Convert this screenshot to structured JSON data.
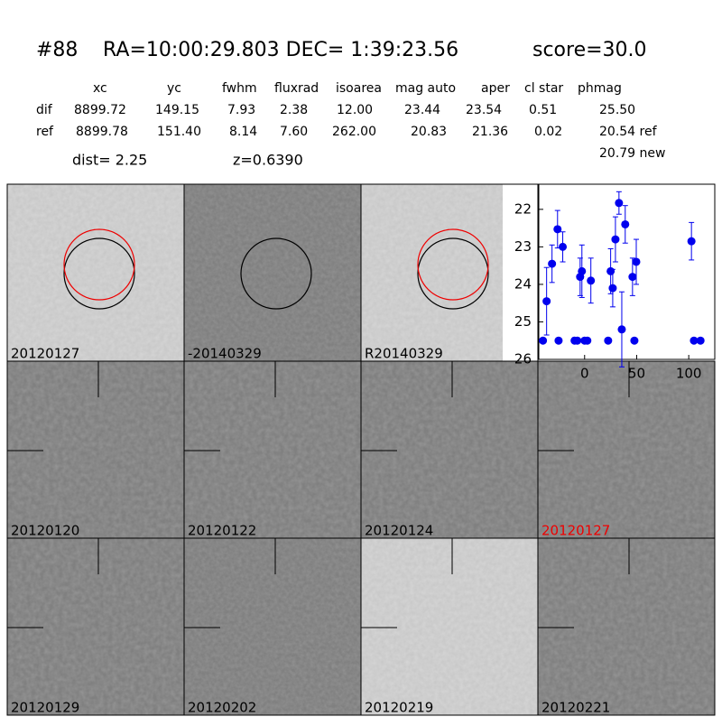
{
  "header": {
    "id": "#88",
    "coords": "RA=10:00:29.803 DEC= 1:39:23.56",
    "score": "score=30.0"
  },
  "table": {
    "columns": [
      "xc",
      "yc",
      "fwhm",
      "fluxrad",
      "isoarea",
      "mag auto",
      "aper",
      "cl star",
      "phmag"
    ],
    "rows": [
      {
        "label": "dif",
        "values": [
          "8899.72",
          "149.15",
          "7.93",
          "2.38",
          "12.00",
          "23.44",
          "23.54",
          "0.51",
          "25.50"
        ]
      },
      {
        "label": "ref",
        "values": [
          "8899.78",
          "151.40",
          "8.14",
          "7.60",
          "262.00",
          "20.83",
          "21.36",
          "0.02",
          "20.54 ref"
        ]
      }
    ],
    "extra": "20.79 new"
  },
  "dist": "dist=  2.25",
  "z": "z=0.6390",
  "panels": [
    "20120127",
    "-20140329",
    "R20140329",
    "20120120",
    "20120122",
    "20120124",
    "20120127",
    "20120129",
    "20120202",
    "20120219",
    "20120221"
  ],
  "chart_data": {
    "type": "scatter",
    "color": "#0000ee",
    "x": [
      -40,
      -36.5,
      -31.3,
      -26,
      -25,
      -21,
      -9.6,
      -7,
      -4.3,
      -2.6,
      0,
      2.6,
      6,
      22.6,
      25,
      27,
      29.6,
      33,
      35.7,
      39,
      46,
      47.8,
      49.6,
      102.6,
      105,
      111.3
    ],
    "values": [
      25.5,
      24.45,
      23.45,
      22.53,
      25.5,
      23.0,
      25.5,
      25.5,
      23.8,
      23.65,
      25.5,
      25.5,
      23.9,
      25.5,
      23.65,
      24.1,
      22.8,
      21.83,
      25.2,
      22.4,
      23.8,
      25.5,
      23.4,
      22.85,
      25.5,
      25.5
    ],
    "errors": [
      null,
      0.9,
      0.5,
      0.5,
      null,
      0.4,
      null,
      null,
      0.5,
      0.7,
      null,
      null,
      0.6,
      null,
      0.6,
      0.5,
      0.6,
      0.3,
      1.0,
      0.5,
      0.5,
      null,
      0.6,
      0.5,
      null,
      null
    ],
    "xlim": [
      -44,
      125
    ],
    "ylim": [
      26,
      21.33
    ],
    "xticks": [
      0,
      50,
      100
    ],
    "yticks": [
      22,
      23,
      24,
      25,
      26
    ]
  }
}
